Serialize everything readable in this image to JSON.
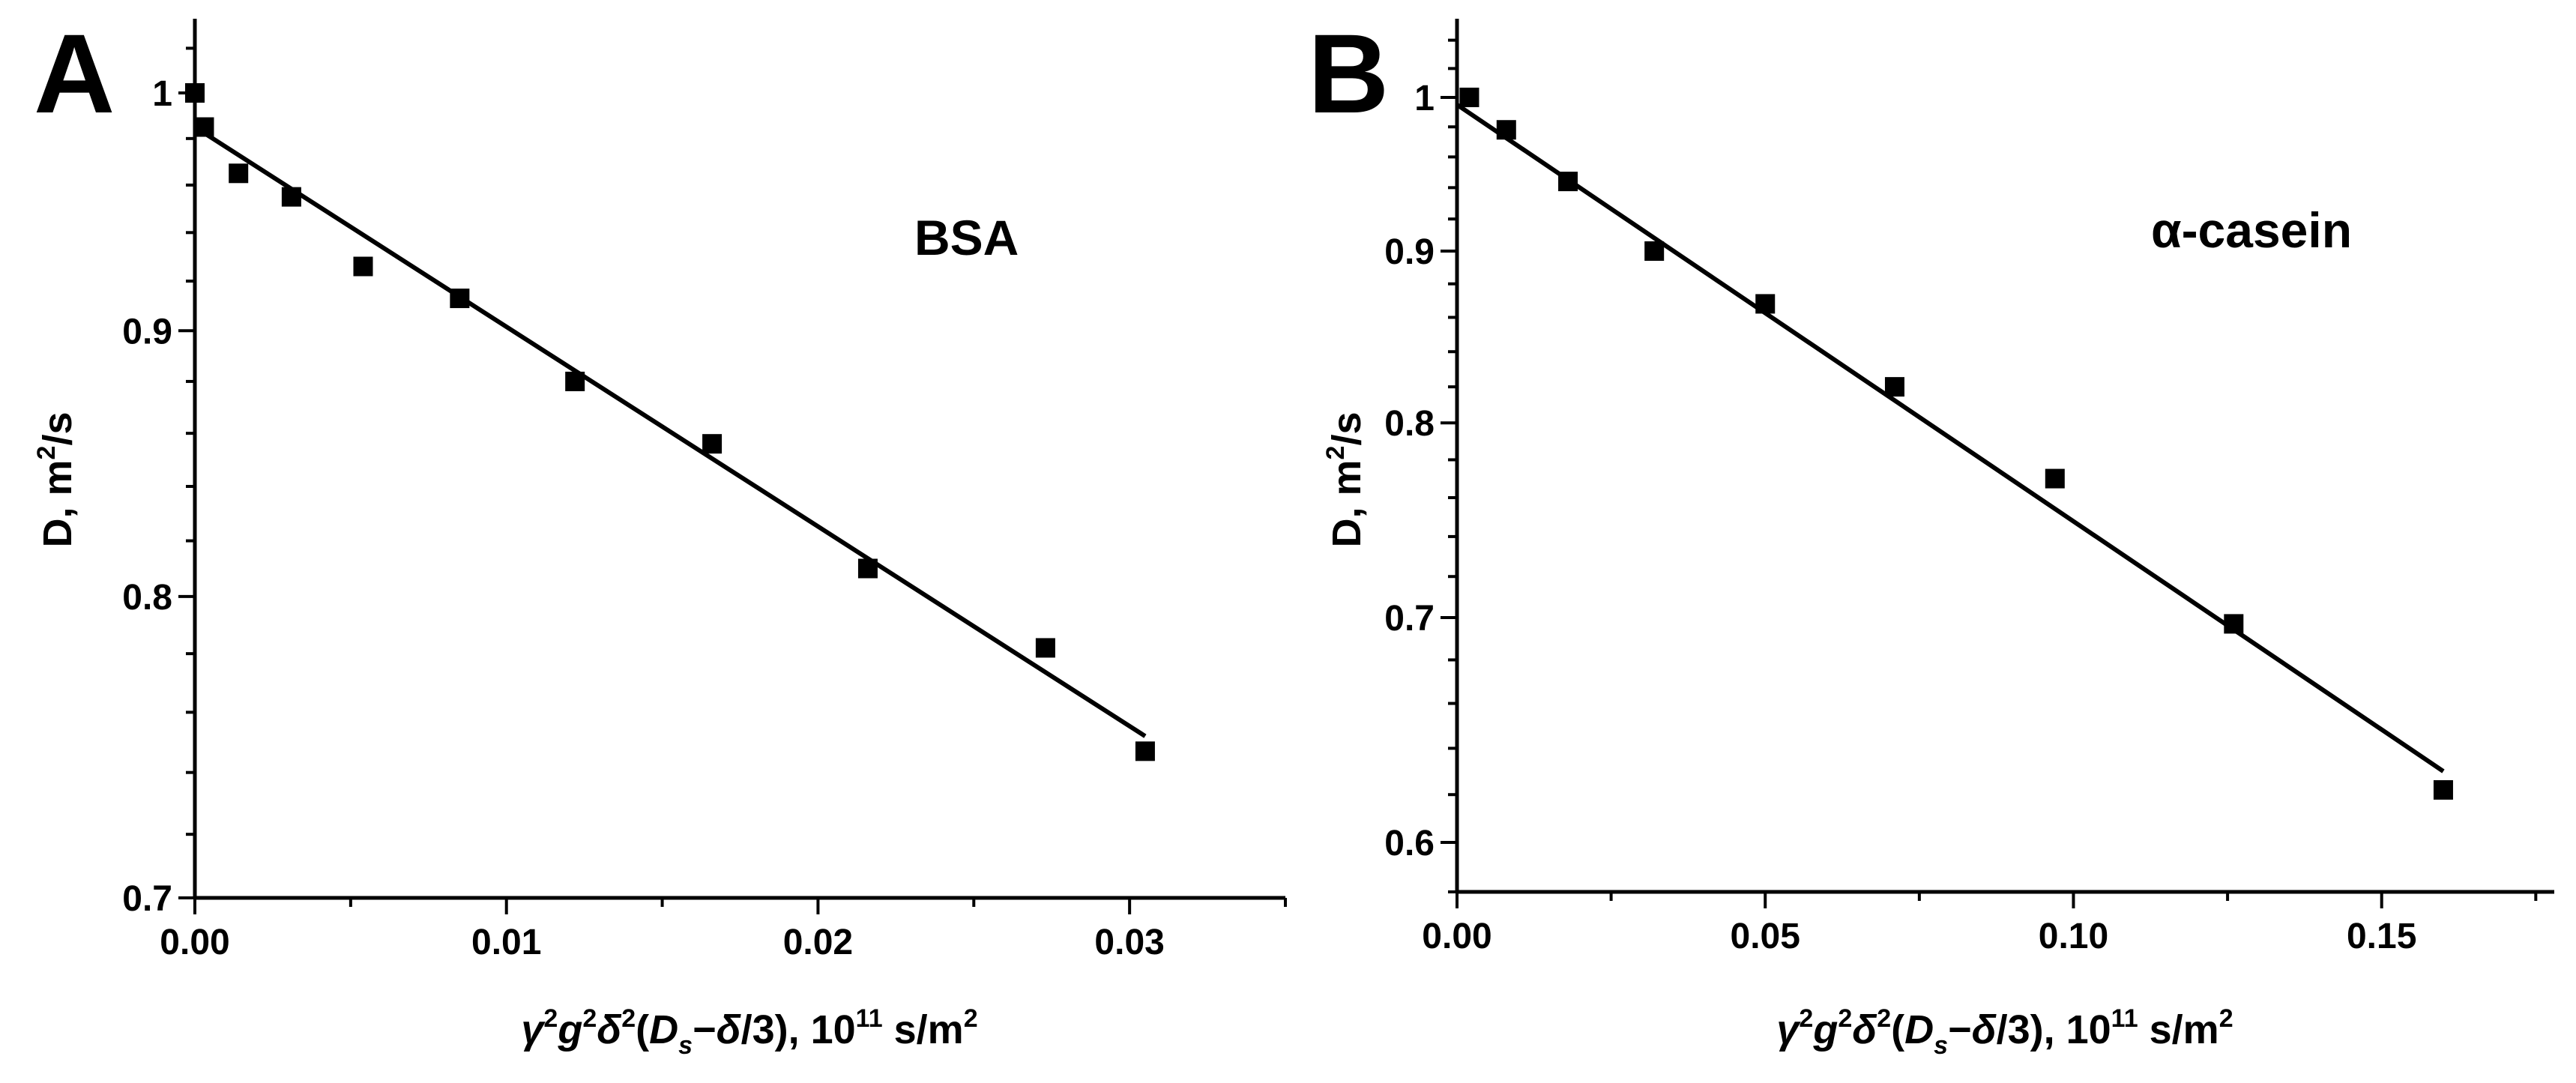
{
  "figure_title": "",
  "chart_data": [
    {
      "type": "scatter",
      "panel_label": "A",
      "annotation": "BSA",
      "xlabel": "γ²g²δ²(Ds−δ/3), 10¹¹ s/m²",
      "ylabel": "D, m²/s",
      "xscale": "linear",
      "yscale": "log",
      "xlim": [
        0,
        0.035
      ],
      "ylim": [
        0.7,
        1.03
      ],
      "x_ticks": [
        0,
        0.01,
        0.02,
        0.03
      ],
      "x_tick_labels": [
        "0.00",
        "0.01",
        "0.02",
        "0.03"
      ],
      "y_ticks": [
        0.7,
        0.8,
        0.9,
        1
      ],
      "y_tick_labels": [
        "0.7",
        "0.8",
        "0.9",
        "1"
      ],
      "series": [
        {
          "name": "data",
          "marker": "square",
          "x": [
            0.0,
            0.0003,
            0.0014,
            0.0031,
            0.0054,
            0.0085,
            0.0122,
            0.0166,
            0.0216,
            0.0273,
            0.0305
          ],
          "y": [
            1.0,
            0.985,
            0.965,
            0.955,
            0.926,
            0.913,
            0.88,
            0.856,
            0.81,
            0.782,
            0.747
          ]
        },
        {
          "name": "fit",
          "line": true,
          "x": [
            0.0,
            0.0305
          ],
          "y": [
            0.985,
            0.752
          ]
        }
      ]
    },
    {
      "type": "scatter",
      "panel_label": "B",
      "annotation": "α-casein",
      "xlabel": "γ²g²δ²(Ds−δ/3), 10¹¹ s/m²",
      "ylabel": "D, m²/s",
      "xscale": "linear",
      "yscale": "log",
      "xlim": [
        0,
        0.178
      ],
      "ylim": [
        0.58,
        1.05
      ],
      "x_ticks": [
        0,
        0.05,
        0.1,
        0.15
      ],
      "x_tick_labels": [
        "0.00",
        "0.05",
        "0.10",
        "0.15"
      ],
      "y_ticks": [
        0.6,
        0.7,
        0.8,
        0.9,
        1
      ],
      "y_tick_labels": [
        "0.6",
        "0.7",
        "0.8",
        "0.9",
        "1"
      ],
      "series": [
        {
          "name": "data",
          "marker": "square",
          "x": [
            0.002,
            0.008,
            0.018,
            0.032,
            0.05,
            0.071,
            0.097,
            0.126,
            0.16
          ],
          "y": [
            1.0,
            0.978,
            0.944,
            0.9,
            0.868,
            0.82,
            0.77,
            0.697,
            0.622
          ]
        },
        {
          "name": "fit",
          "line": true,
          "x": [
            0.0,
            0.16
          ],
          "y": [
            0.995,
            0.63
          ]
        }
      ]
    }
  ]
}
